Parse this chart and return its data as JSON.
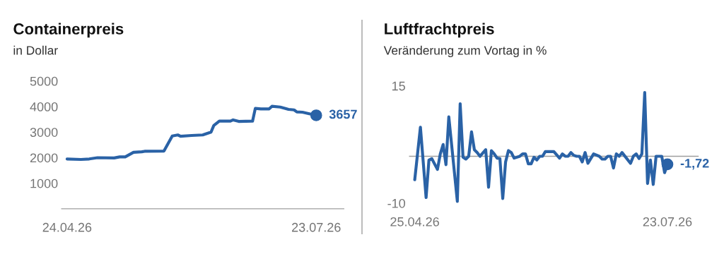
{
  "chart_data": [
    {
      "type": "line",
      "title": "Containerpreis",
      "subtitle": "in Dollar",
      "x": [
        "2026-04-24",
        "2026-04-29",
        "2026-05-02",
        "2026-05-05",
        "2026-05-11",
        "2026-05-13",
        "2026-05-15",
        "2026-05-18",
        "2026-05-21",
        "2026-05-22",
        "2026-05-29",
        "2026-06-01",
        "2026-06-03",
        "2026-06-04",
        "2026-06-08",
        "2026-06-12",
        "2026-06-15",
        "2026-06-16",
        "2026-06-18",
        "2026-06-22",
        "2026-06-23",
        "2026-06-25",
        "2026-06-30",
        "2026-07-01",
        "2026-07-03",
        "2026-07-06",
        "2026-07-07",
        "2026-07-10",
        "2026-07-13",
        "2026-07-15",
        "2026-07-16",
        "2026-07-18",
        "2026-07-23"
      ],
      "series": [
        {
          "color": "#2a62a6",
          "values": [
            1950,
            1930,
            1950,
            2000,
            1990,
            2030,
            2030,
            2210,
            2230,
            2250,
            2260,
            2850,
            2890,
            2840,
            2870,
            2890,
            3000,
            3260,
            3430,
            3430,
            3480,
            3420,
            3430,
            3930,
            3910,
            3910,
            4010,
            3980,
            3890,
            3870,
            3790,
            3780,
            3657
          ],
          "value_labels": [
            null,
            null,
            null,
            null,
            null,
            null,
            null,
            null,
            null,
            null,
            null,
            null,
            null,
            null,
            null,
            null,
            null,
            null,
            null,
            null,
            null,
            null,
            null,
            null,
            null,
            null,
            null,
            null,
            null,
            null,
            null,
            null,
            "3657"
          ]
        }
      ],
      "xlim": [
        "2026-04-22",
        "2026-08-02"
      ],
      "xticks": [
        {
          "value": "2026-04-24",
          "label": "24.04.26"
        },
        {
          "value": "2026-07-23",
          "label": "23.07.26"
        }
      ],
      "ylim": [
        0,
        5000
      ],
      "yticks": [
        1000,
        2000,
        3000,
        4000,
        5000
      ],
      "grid": false,
      "legend": false
    },
    {
      "type": "line",
      "title": "Luftfrachtpreis",
      "subtitle": "Veränderung zum Vortag in %",
      "x": [
        "2026-04-25",
        "2026-04-27",
        "2026-04-29",
        "2026-04-30",
        "2026-05-01",
        "2026-05-03",
        "2026-05-04",
        "2026-05-05",
        "2026-05-06",
        "2026-05-07",
        "2026-05-10",
        "2026-05-11",
        "2026-05-12",
        "2026-05-13",
        "2026-05-14",
        "2026-05-15",
        "2026-05-16",
        "2026-05-17",
        "2026-05-18",
        "2026-05-20",
        "2026-05-21",
        "2026-05-22",
        "2026-05-23",
        "2026-05-24",
        "2026-05-25",
        "2026-05-26",
        "2026-05-27",
        "2026-05-28",
        "2026-05-29",
        "2026-05-30",
        "2026-06-01",
        "2026-06-02",
        "2026-06-03",
        "2026-06-04",
        "2026-06-05",
        "2026-06-06",
        "2026-06-07",
        "2026-06-08",
        "2026-06-09",
        "2026-06-10",
        "2026-06-13",
        "2026-06-15",
        "2026-06-16",
        "2026-06-17",
        "2026-06-18",
        "2026-06-19",
        "2026-06-20",
        "2026-06-21",
        "2026-06-22",
        "2026-06-23",
        "2026-06-24",
        "2026-06-25",
        "2026-06-27",
        "2026-06-29",
        "2026-06-30",
        "2026-07-01",
        "2026-07-02",
        "2026-07-03",
        "2026-07-04",
        "2026-07-05",
        "2026-07-06",
        "2026-07-07",
        "2026-07-10",
        "2026-07-11",
        "2026-07-12",
        "2026-07-13",
        "2026-07-14",
        "2026-07-15",
        "2026-07-16",
        "2026-07-17",
        "2026-07-18",
        "2026-07-19",
        "2026-07-21",
        "2026-07-22",
        "2026-07-23"
      ],
      "series": [
        {
          "color": "#2a62a6",
          "values": [
            -5,
            6.2,
            -8.8,
            -0.8,
            -0.5,
            -2.8,
            0.5,
            2.5,
            -1.8,
            8.4,
            -9.6,
            11.2,
            -0.2,
            -0.6,
            0,
            5.2,
            1.4,
            0.8,
            0,
            1.4,
            -6.6,
            1.2,
            0.5,
            -0.4,
            -0.5,
            -9,
            -1.2,
            1.2,
            0.8,
            -0.4,
            0,
            0.5,
            0.5,
            -1.6,
            -1.6,
            -0.2,
            -0.8,
            0,
            0,
            1,
            1,
            -0.4,
            0.5,
            0,
            0,
            0.8,
            0.2,
            0,
            0,
            -1.2,
            0.8,
            -1.5,
            0.5,
            0,
            -0.6,
            -0.6,
            0,
            0,
            -2.5,
            0.5,
            0,
            0.8,
            -1.5,
            0,
            0.5,
            -0.5,
            0.5,
            13.6,
            -5.8,
            -0.8,
            -6,
            0,
            0,
            -3.5,
            -1.72
          ],
          "value_labels": [
            null,
            null,
            null,
            null,
            null,
            null,
            null,
            null,
            null,
            null,
            null,
            null,
            null,
            null,
            null,
            null,
            null,
            null,
            null,
            null,
            null,
            null,
            null,
            null,
            null,
            null,
            null,
            null,
            null,
            null,
            null,
            null,
            null,
            null,
            null,
            null,
            null,
            null,
            null,
            null,
            null,
            null,
            null,
            null,
            null,
            null,
            null,
            null,
            null,
            null,
            null,
            null,
            null,
            null,
            null,
            null,
            null,
            null,
            null,
            null,
            null,
            null,
            null,
            null,
            null,
            null,
            null,
            null,
            null,
            null,
            null,
            null,
            null,
            null,
            "-1,72"
          ]
        }
      ],
      "xlim": [
        "2026-04-23",
        "2026-08-03"
      ],
      "xticks": [
        {
          "value": "2026-04-25",
          "label": "25.04.26"
        },
        {
          "value": "2026-07-23",
          "label": "23.07.26"
        }
      ],
      "ylim": [
        -10,
        15
      ],
      "yticks": [
        -10,
        15
      ],
      "ref_lines": [
        {
          "axis": "y",
          "value": 0,
          "color": "#9e9e9e"
        }
      ],
      "grid": false,
      "legend": false
    }
  ]
}
